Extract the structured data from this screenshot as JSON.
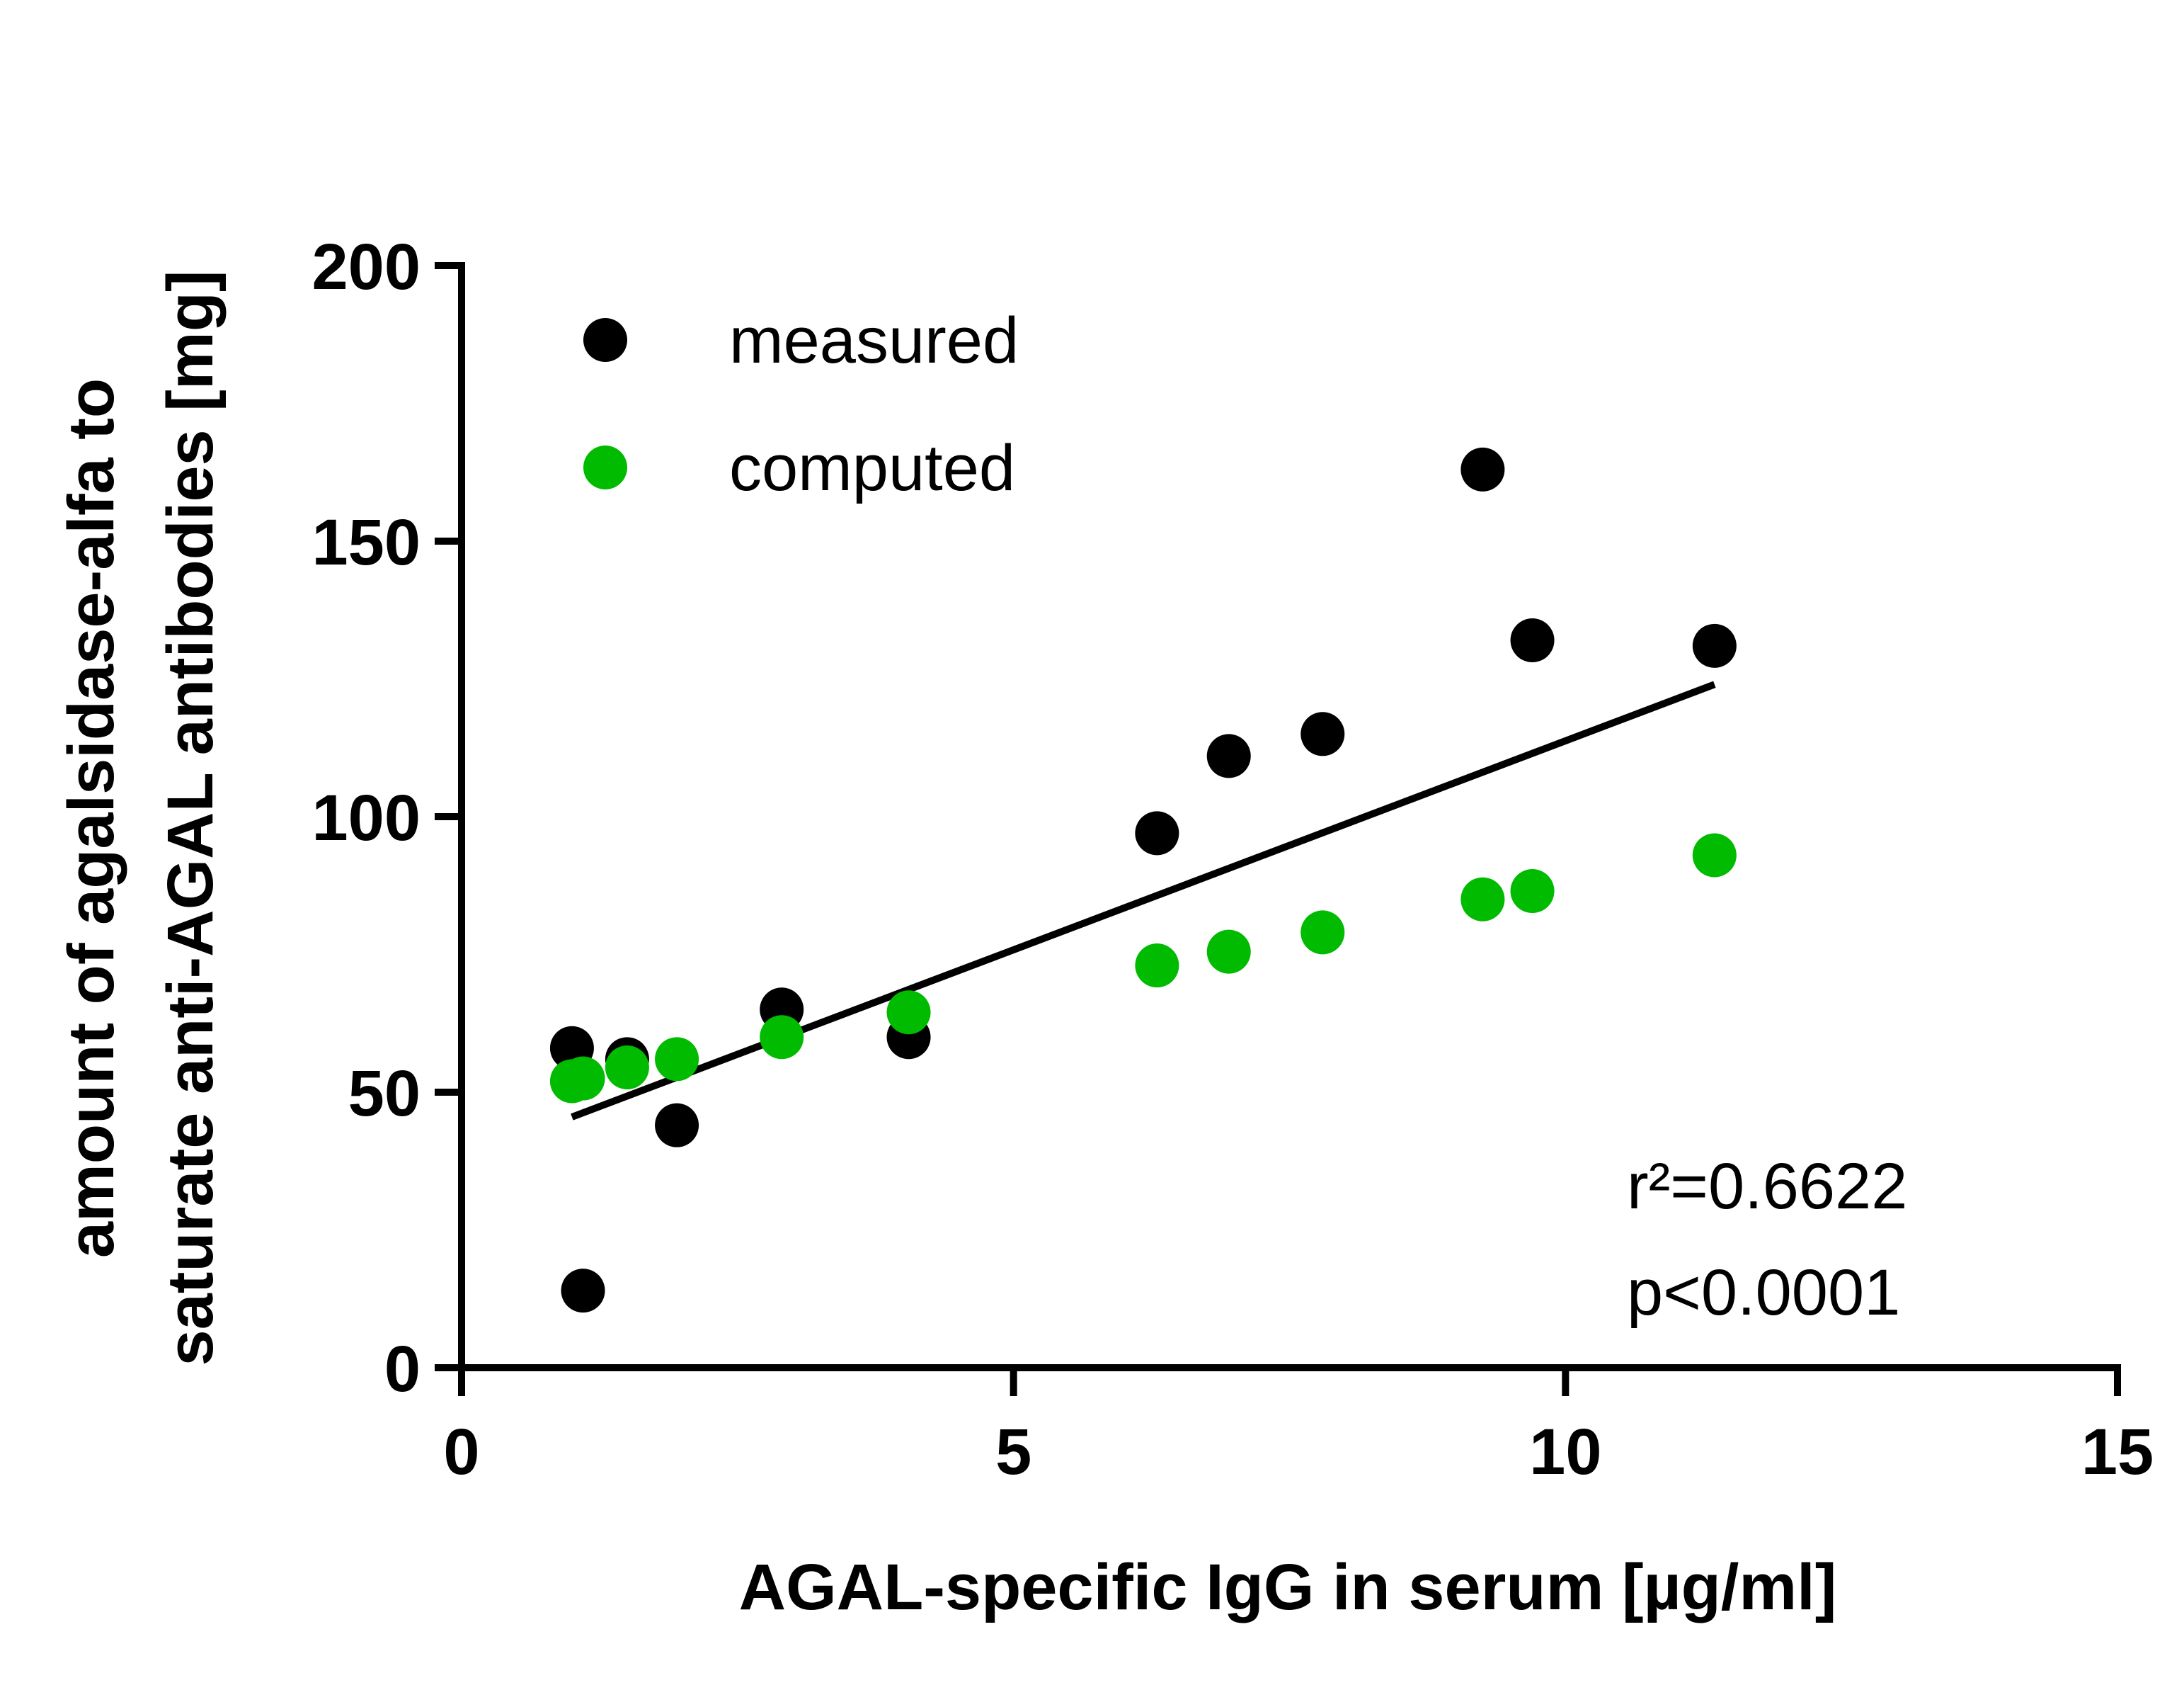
{
  "chart_data": {
    "type": "scatter",
    "title": "",
    "xlabel": "AGAL-specific IgG in serum [µg/ml]",
    "ylabel_lines": [
      "amount of agalsidase-alfa to",
      "saturate anti-AGAL antibodies [mg]"
    ],
    "xlim": [
      0,
      15
    ],
    "ylim": [
      0,
      200
    ],
    "x_ticks": [
      0,
      5,
      10,
      15
    ],
    "x_tick_labels": [
      "0",
      "5",
      "10",
      "15"
    ],
    "y_ticks": [
      0,
      50,
      100,
      150,
      200
    ],
    "y_tick_labels": [
      "0",
      "50",
      "100",
      "150",
      "200"
    ],
    "grid": false,
    "legend_position": "top-left",
    "series": [
      {
        "name": "measured",
        "color": "#000000",
        "points": [
          {
            "x": 1.0,
            "y": 58
          },
          {
            "x": 1.1,
            "y": 14
          },
          {
            "x": 1.5,
            "y": 56
          },
          {
            "x": 1.95,
            "y": 44
          },
          {
            "x": 2.9,
            "y": 65
          },
          {
            "x": 4.05,
            "y": 60
          },
          {
            "x": 6.3,
            "y": 97
          },
          {
            "x": 6.95,
            "y": 111
          },
          {
            "x": 7.8,
            "y": 115
          },
          {
            "x": 9.25,
            "y": 163
          },
          {
            "x": 9.7,
            "y": 132
          },
          {
            "x": 11.35,
            "y": 131
          }
        ]
      },
      {
        "name": "computed",
        "color": "#00bb00",
        "points": [
          {
            "x": 1.0,
            "y": 52
          },
          {
            "x": 1.1,
            "y": 52.5
          },
          {
            "x": 1.5,
            "y": 54.5
          },
          {
            "x": 1.95,
            "y": 56
          },
          {
            "x": 2.9,
            "y": 60
          },
          {
            "x": 4.05,
            "y": 64.5
          },
          {
            "x": 6.3,
            "y": 73
          },
          {
            "x": 6.95,
            "y": 75.5
          },
          {
            "x": 7.8,
            "y": 79
          },
          {
            "x": 9.25,
            "y": 85
          },
          {
            "x": 9.7,
            "y": 86.5
          },
          {
            "x": 11.35,
            "y": 93
          }
        ]
      }
    ],
    "regression_line": {
      "color": "#000000",
      "x1": 1.0,
      "y1": 45.5,
      "x2": 11.35,
      "y2": 124
    },
    "annotations": {
      "r_squared": "r²=0.6622",
      "p_value": "p<0.0001"
    }
  }
}
